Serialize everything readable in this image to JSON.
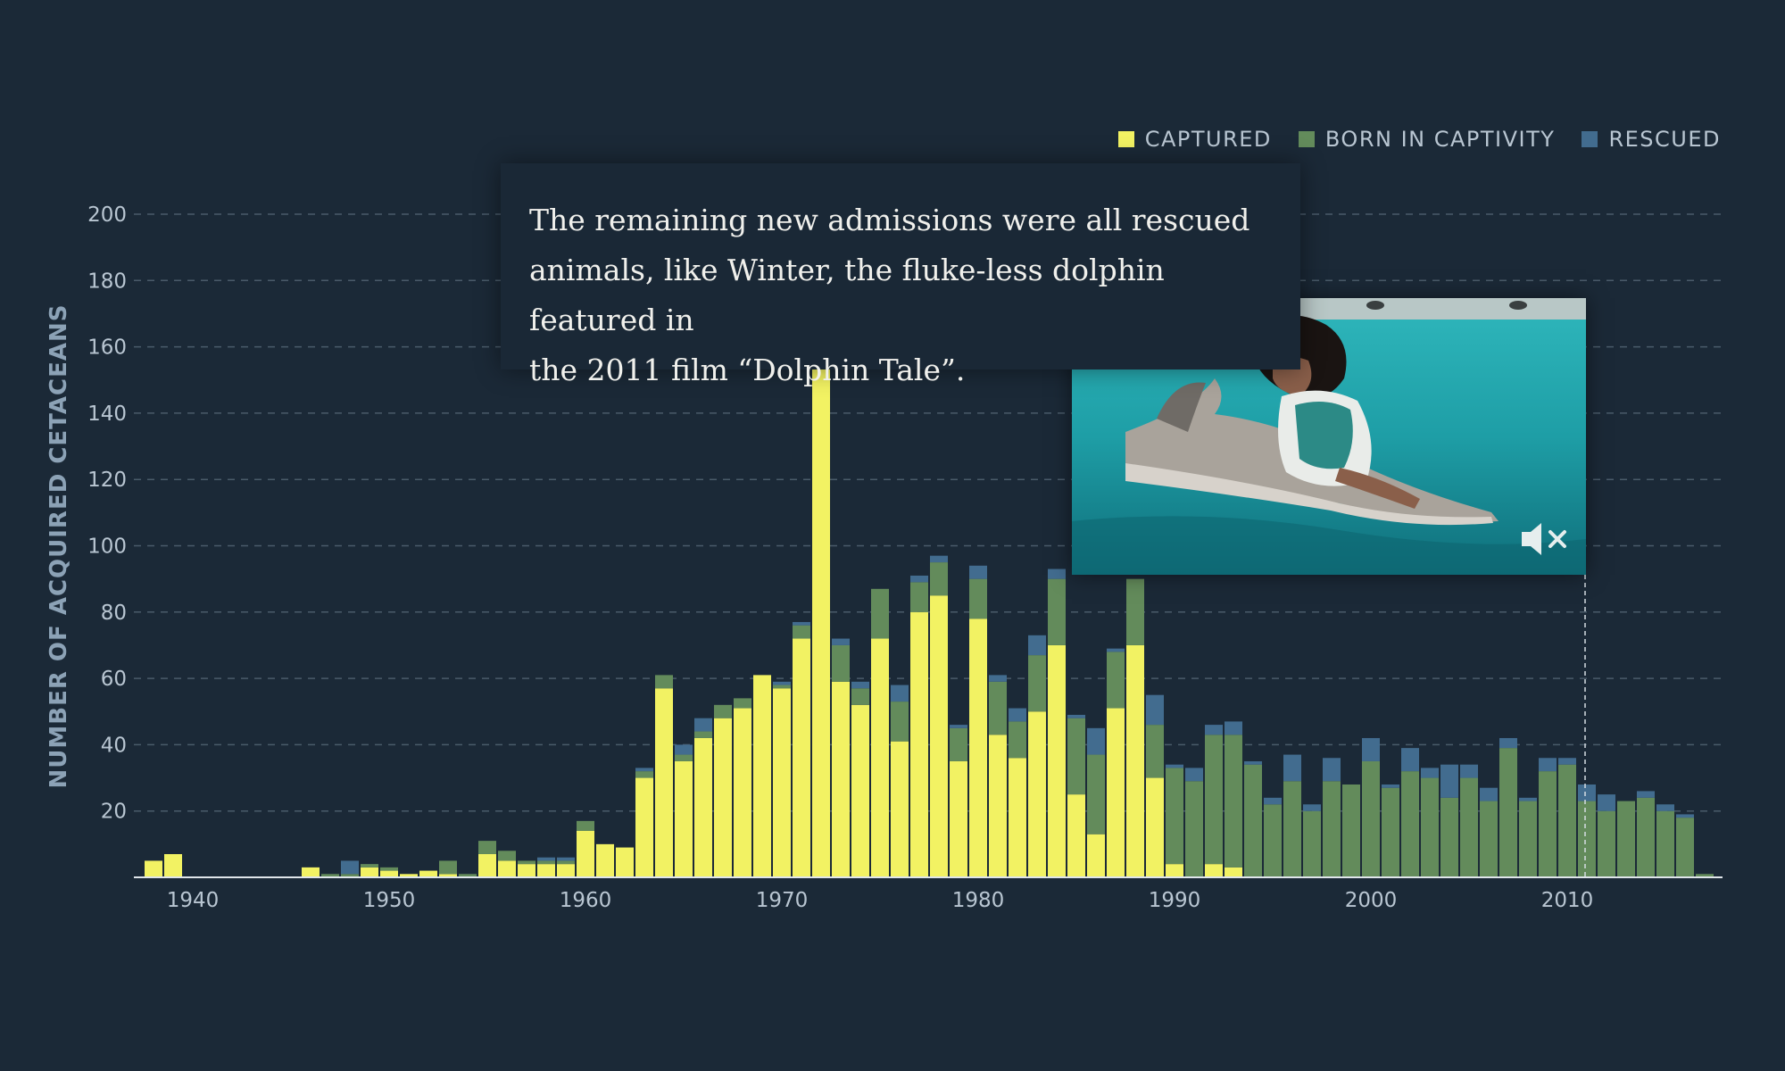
{
  "chart_data": {
    "type": "bar",
    "stacked": true,
    "ylabel": "NUMBER OF ACQUIRED CETACEANS",
    "xlabel": "",
    "ylim": [
      0,
      200
    ],
    "xlim": [
      1937,
      2018
    ],
    "y_ticks": [
      20,
      40,
      60,
      80,
      100,
      120,
      140,
      160,
      180,
      200
    ],
    "x_ticks": [
      1940,
      1950,
      1960,
      1970,
      1980,
      1990,
      2000,
      2010
    ],
    "grid": true,
    "legend_position": "top-right",
    "colors": {
      "captured": "#f2f263",
      "born_in_captivity": "#638b5b",
      "rescued": "#426c8f",
      "background": "#1b2937"
    },
    "x": [
      1938,
      1939,
      1946,
      1947,
      1948,
      1949,
      1950,
      1951,
      1952,
      1953,
      1954,
      1955,
      1956,
      1957,
      1958,
      1959,
      1960,
      1961,
      1962,
      1963,
      1964,
      1965,
      1966,
      1967,
      1968,
      1969,
      1970,
      1971,
      1972,
      1973,
      1974,
      1975,
      1976,
      1977,
      1978,
      1979,
      1980,
      1981,
      1982,
      1983,
      1984,
      1985,
      1986,
      1987,
      1988,
      1989,
      1990,
      1991,
      1992,
      1993,
      1994,
      1995,
      1996,
      1997,
      1998,
      1999,
      2000,
      2001,
      2002,
      2003,
      2004,
      2005,
      2006,
      2007,
      2008,
      2009,
      2010,
      2011,
      2012,
      2013,
      2014,
      2015,
      2016,
      2017
    ],
    "series": [
      {
        "name": "CAPTURED",
        "values": [
          5,
          7,
          3,
          0,
          0,
          3,
          2,
          1,
          2,
          1,
          0,
          7,
          5,
          4,
          4,
          4,
          14,
          10,
          9,
          30,
          57,
          35,
          42,
          48,
          51,
          61,
          57,
          72,
          195,
          59,
          52,
          72,
          41,
          80,
          85,
          35,
          78,
          43,
          36,
          50,
          70,
          25,
          13,
          51,
          70,
          30,
          4,
          0,
          4,
          3,
          0,
          0,
          0,
          0,
          0,
          0,
          0,
          0,
          0,
          0,
          0,
          0,
          0,
          0,
          0,
          0,
          0,
          0,
          0,
          0,
          0,
          0,
          0,
          0
        ]
      },
      {
        "name": "BORN IN CAPTIVITY",
        "values": [
          0,
          0,
          0,
          1,
          1,
          1,
          1,
          0,
          0,
          4,
          1,
          4,
          3,
          1,
          1,
          1,
          3,
          0,
          0,
          2,
          4,
          2,
          2,
          4,
          3,
          0,
          1,
          4,
          0,
          11,
          5,
          15,
          12,
          9,
          10,
          10,
          12,
          16,
          11,
          17,
          20,
          23,
          24,
          17,
          20,
          16,
          29,
          29,
          39,
          40,
          34,
          22,
          29,
          20,
          29,
          28,
          35,
          27,
          32,
          30,
          24,
          30,
          23,
          39,
          23,
          32,
          34,
          23,
          20,
          23,
          24,
          20,
          18,
          1
        ]
      },
      {
        "name": "RESCUED",
        "values": [
          0,
          0,
          0,
          0,
          4,
          0,
          0,
          0,
          0,
          0,
          0,
          0,
          0,
          0,
          1,
          1,
          0,
          0,
          0,
          1,
          0,
          3,
          4,
          0,
          0,
          0,
          1,
          1,
          0,
          2,
          2,
          0,
          5,
          2,
          2,
          1,
          4,
          2,
          4,
          6,
          3,
          1,
          8,
          1,
          0,
          9,
          1,
          4,
          3,
          4,
          1,
          2,
          8,
          2,
          7,
          0,
          7,
          1,
          7,
          3,
          10,
          4,
          4,
          3,
          1,
          4,
          2,
          5,
          5,
          0,
          2,
          2,
          1,
          0
        ]
      }
    ]
  },
  "caption": {
    "line1": "The remaining new admissions were all rescued",
    "line2": "animals, like Winter, the fluke-less dolphin featured in",
    "line3": "the 2011 film “Dolphin Tale”."
  },
  "video": {
    "mute_icon": "mute-icon"
  }
}
